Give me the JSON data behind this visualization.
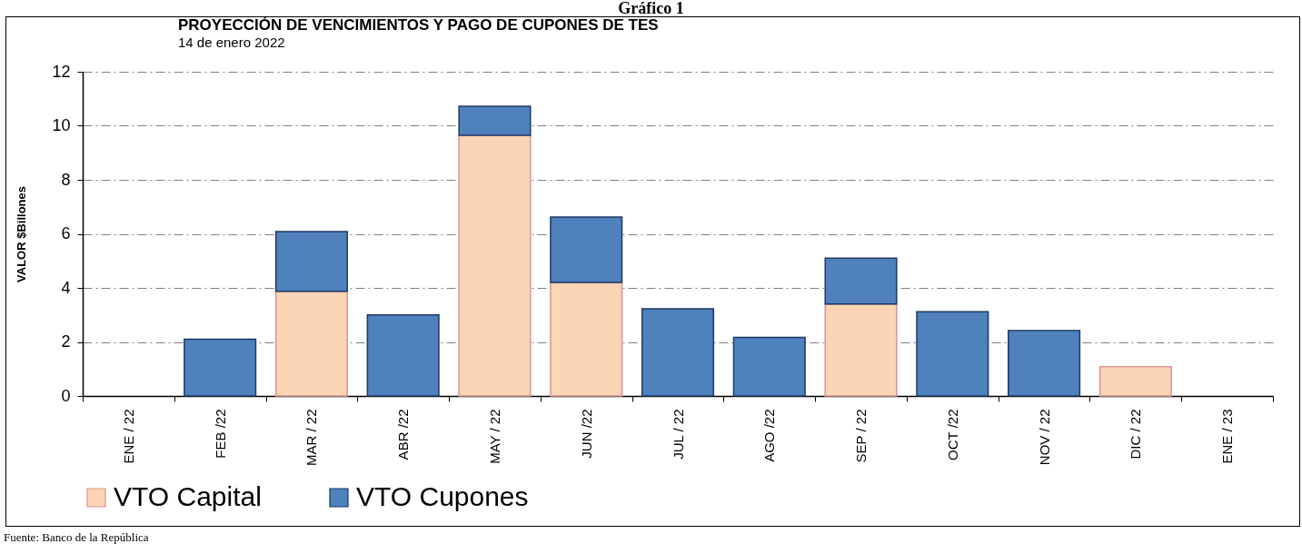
{
  "chart_data": {
    "type": "bar",
    "title": "PROYECCIÓN DE VENCIMIENTOS Y PAGO DE CUPONES DE TES",
    "subtitle": "14 de enero 2022",
    "ylabel": "VALOR $Billones",
    "categories": [
      "ENE / 22",
      "FEB /22",
      "MAR / 22",
      "ABR /22",
      "MAY / 22",
      "JUN /22",
      "JUL / 22",
      "AGO /22",
      "SEP / 22",
      "OCT /22",
      "NOV / 22",
      "DIC / 22",
      "ENE / 23"
    ],
    "series": [
      {
        "name": "VTO Capital",
        "color": "#fbd5b5",
        "values": [
          null,
          null,
          3.87,
          null,
          9.65,
          4.2,
          null,
          null,
          3.4,
          null,
          null,
          1.08,
          null
        ]
      },
      {
        "name": "VTO Cupones",
        "color": "#4f81bd",
        "values": [
          null,
          2.1,
          2.21,
          3.0,
          1.07,
          2.42,
          3.23,
          2.17,
          1.7,
          3.12,
          2.42,
          null,
          null
        ]
      }
    ],
    "stacked": true,
    "ylim": [
      0,
      12
    ],
    "yticks": [
      0,
      2,
      4,
      6,
      8,
      10,
      12
    ],
    "grid": "y",
    "legend": "bottom",
    "annotations": [
      "Gráfico 1",
      "Fuente: Banco de la República"
    ]
  }
}
